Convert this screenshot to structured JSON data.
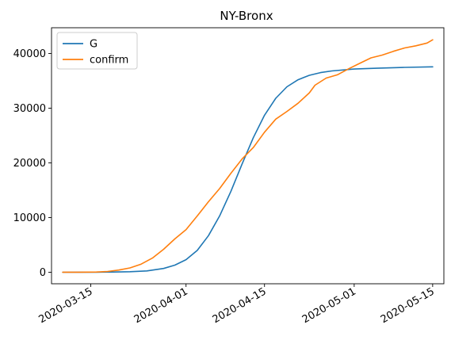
{
  "chart_data": {
    "type": "line",
    "title": "NY-Bronx",
    "xlabel": "",
    "ylabel": "",
    "x_axis": {
      "type": "date",
      "range": [
        "2020-03-08",
        "2020-05-17"
      ],
      "ticks": [
        "2020-03-15",
        "2020-04-01",
        "2020-04-15",
        "2020-05-01",
        "2020-05-15"
      ]
    },
    "y_axis": {
      "range": [
        -2100,
        44700
      ],
      "ticks": [
        0,
        10000,
        20000,
        30000,
        40000
      ]
    },
    "grid": false,
    "legend": {
      "position": "top-left"
    },
    "series": [
      {
        "name": "G",
        "color": "#1f77b4",
        "points": [
          [
            "2020-03-10",
            5
          ],
          [
            "2020-03-13",
            10
          ],
          [
            "2020-03-16",
            20
          ],
          [
            "2020-03-19",
            40
          ],
          [
            "2020-03-22",
            100
          ],
          [
            "2020-03-25",
            250
          ],
          [
            "2020-03-28",
            700
          ],
          [
            "2020-03-30",
            1300
          ],
          [
            "2020-04-01",
            2300
          ],
          [
            "2020-04-03",
            4000
          ],
          [
            "2020-04-05",
            6700
          ],
          [
            "2020-04-07",
            10300
          ],
          [
            "2020-04-09",
            14800
          ],
          [
            "2020-04-11",
            19800
          ],
          [
            "2020-04-13",
            24600
          ],
          [
            "2020-04-15",
            28700
          ],
          [
            "2020-04-17",
            31800
          ],
          [
            "2020-04-19",
            33900
          ],
          [
            "2020-04-21",
            35200
          ],
          [
            "2020-04-23",
            36000
          ],
          [
            "2020-04-25",
            36500
          ],
          [
            "2020-04-27",
            36800
          ],
          [
            "2020-05-01",
            37150
          ],
          [
            "2020-05-05",
            37300
          ],
          [
            "2020-05-10",
            37450
          ],
          [
            "2020-05-15",
            37550
          ]
        ]
      },
      {
        "name": "confirm",
        "color": "#ff7f0e",
        "points": [
          [
            "2020-03-10",
            10
          ],
          [
            "2020-03-13",
            20
          ],
          [
            "2020-03-16",
            50
          ],
          [
            "2020-03-18",
            150
          ],
          [
            "2020-03-20",
            400
          ],
          [
            "2020-03-22",
            800
          ],
          [
            "2020-03-24",
            1500
          ],
          [
            "2020-03-26",
            2600
          ],
          [
            "2020-03-28",
            4200
          ],
          [
            "2020-03-30",
            6100
          ],
          [
            "2020-04-01",
            7800
          ],
          [
            "2020-04-03",
            10300
          ],
          [
            "2020-04-05",
            12900
          ],
          [
            "2020-04-07",
            15300
          ],
          [
            "2020-04-09",
            18100
          ],
          [
            "2020-04-11",
            20700
          ],
          [
            "2020-04-13",
            22800
          ],
          [
            "2020-04-15",
            25600
          ],
          [
            "2020-04-17",
            28000
          ],
          [
            "2020-04-19",
            29400
          ],
          [
            "2020-04-21",
            30900
          ],
          [
            "2020-04-23",
            32800
          ],
          [
            "2020-04-24",
            34200
          ],
          [
            "2020-04-26",
            35500
          ],
          [
            "2020-04-28",
            36100
          ],
          [
            "2020-04-30",
            37200
          ],
          [
            "2020-05-02",
            38200
          ],
          [
            "2020-05-04",
            39200
          ],
          [
            "2020-05-06",
            39700
          ],
          [
            "2020-05-08",
            40400
          ],
          [
            "2020-05-10",
            41000
          ],
          [
            "2020-05-12",
            41400
          ],
          [
            "2020-05-14",
            41900
          ],
          [
            "2020-05-15",
            42500
          ]
        ]
      }
    ]
  }
}
